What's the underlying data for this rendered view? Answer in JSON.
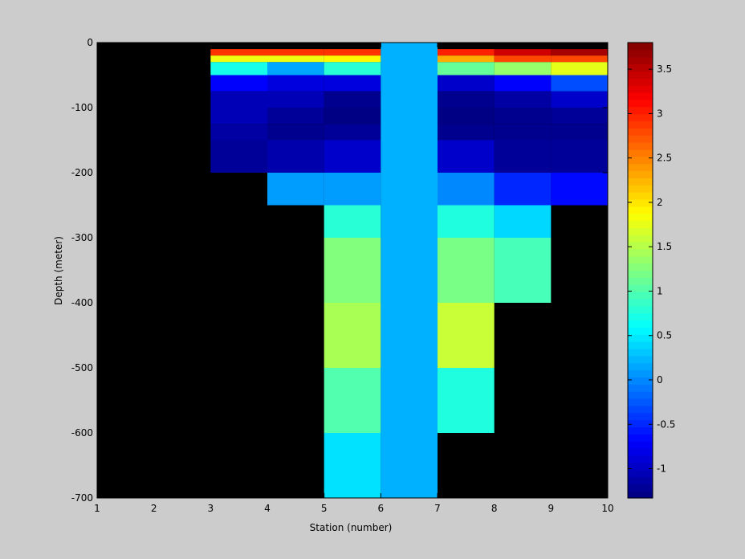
{
  "chart_data": {
    "type": "heatmap",
    "xlabel": "Station (number)",
    "ylabel": "Depth (meter)",
    "xlim": [
      1,
      10
    ],
    "ylim": [
      -700,
      0
    ],
    "x_ticks": [
      1,
      2,
      3,
      4,
      5,
      6,
      7,
      8,
      9,
      10
    ],
    "y_ticks": [
      0,
      -100,
      -200,
      -300,
      -400,
      -500,
      -600,
      -700
    ],
    "background_color": "#000000",
    "colormap": "jet",
    "clim": [
      -1.33,
      3.8
    ],
    "colorbar_ticks": [
      -1,
      -0.5,
      0,
      0.5,
      1,
      1.5,
      2,
      2.5,
      3,
      3.5
    ],
    "cells": [
      {
        "x0": 3,
        "x1": 4,
        "top": -10,
        "bottom": -20,
        "value": 2.9
      },
      {
        "x0": 3,
        "x1": 4,
        "top": -20,
        "bottom": -30,
        "value": 1.8
      },
      {
        "x0": 3,
        "x1": 4,
        "top": -30,
        "bottom": -50,
        "value": 0.7
      },
      {
        "x0": 3,
        "x1": 4,
        "top": -50,
        "bottom": -75,
        "value": -0.7
      },
      {
        "x0": 3,
        "x1": 4,
        "top": -75,
        "bottom": -100,
        "value": -1.05
      },
      {
        "x0": 3,
        "x1": 4,
        "top": -100,
        "bottom": -125,
        "value": -1.05
      },
      {
        "x0": 3,
        "x1": 4,
        "top": -125,
        "bottom": -150,
        "value": -1.15
      },
      {
        "x0": 3,
        "x1": 4,
        "top": -150,
        "bottom": -200,
        "value": -1.2
      },
      {
        "x0": 4,
        "x1": 5,
        "top": -10,
        "bottom": -20,
        "value": 2.9
      },
      {
        "x0": 4,
        "x1": 5,
        "top": -20,
        "bottom": -30,
        "value": 1.8
      },
      {
        "x0": 4,
        "x1": 5,
        "top": -30,
        "bottom": -50,
        "value": 0.15
      },
      {
        "x0": 4,
        "x1": 5,
        "top": -50,
        "bottom": -75,
        "value": -0.85
      },
      {
        "x0": 4,
        "x1": 5,
        "top": -75,
        "bottom": -100,
        "value": -1.05
      },
      {
        "x0": 4,
        "x1": 5,
        "top": -100,
        "bottom": -125,
        "value": -1.2
      },
      {
        "x0": 4,
        "x1": 5,
        "top": -125,
        "bottom": -150,
        "value": -1.25
      },
      {
        "x0": 4,
        "x1": 5,
        "top": -150,
        "bottom": -200,
        "value": -1.1
      },
      {
        "x0": 4,
        "x1": 5,
        "top": -200,
        "bottom": -250,
        "value": 0.1
      },
      {
        "x0": 5,
        "x1": 6,
        "top": -10,
        "bottom": -20,
        "value": 2.9
      },
      {
        "x0": 5,
        "x1": 6,
        "top": -20,
        "bottom": -30,
        "value": 1.9
      },
      {
        "x0": 5,
        "x1": 6,
        "top": -30,
        "bottom": -50,
        "value": 0.8
      },
      {
        "x0": 5,
        "x1": 6,
        "top": -50,
        "bottom": -75,
        "value": -0.85
      },
      {
        "x0": 5,
        "x1": 6,
        "top": -75,
        "bottom": -100,
        "value": -1.25
      },
      {
        "x0": 5,
        "x1": 6,
        "top": -100,
        "bottom": -125,
        "value": -1.3
      },
      {
        "x0": 5,
        "x1": 6,
        "top": -125,
        "bottom": -150,
        "value": -1.2
      },
      {
        "x0": 5,
        "x1": 6,
        "top": -150,
        "bottom": -200,
        "value": -0.95
      },
      {
        "x0": 5,
        "x1": 6,
        "top": -200,
        "bottom": -250,
        "value": 0.1
      },
      {
        "x0": 5,
        "x1": 6,
        "top": -250,
        "bottom": -300,
        "value": 0.8
      },
      {
        "x0": 5,
        "x1": 6,
        "top": -300,
        "bottom": -400,
        "value": 1.25
      },
      {
        "x0": 5,
        "x1": 6,
        "top": -400,
        "bottom": -500,
        "value": 1.45
      },
      {
        "x0": 5,
        "x1": 6,
        "top": -500,
        "bottom": -600,
        "value": 1.0
      },
      {
        "x0": 5,
        "x1": 6,
        "top": -600,
        "bottom": -700,
        "value": 0.45
      },
      {
        "x0": 6,
        "x1": 7,
        "top": 0,
        "bottom": -700,
        "value": 0.2
      },
      {
        "x0": 7,
        "x1": 8,
        "top": -10,
        "bottom": -20,
        "value": 3.0
      },
      {
        "x0": 7,
        "x1": 8,
        "top": -20,
        "bottom": -30,
        "value": 2.3
      },
      {
        "x0": 7,
        "x1": 8,
        "top": -30,
        "bottom": -50,
        "value": 1.1
      },
      {
        "x0": 7,
        "x1": 8,
        "top": -50,
        "bottom": -75,
        "value": -0.95
      },
      {
        "x0": 7,
        "x1": 8,
        "top": -75,
        "bottom": -100,
        "value": -1.25
      },
      {
        "x0": 7,
        "x1": 8,
        "top": -100,
        "bottom": -125,
        "value": -1.3
      },
      {
        "x0": 7,
        "x1": 8,
        "top": -125,
        "bottom": -150,
        "value": -1.25
      },
      {
        "x0": 7,
        "x1": 8,
        "top": -150,
        "bottom": -200,
        "value": -0.95
      },
      {
        "x0": 7,
        "x1": 8,
        "top": -200,
        "bottom": -250,
        "value": 0.0
      },
      {
        "x0": 7,
        "x1": 8,
        "top": -250,
        "bottom": -300,
        "value": 0.75
      },
      {
        "x0": 7,
        "x1": 8,
        "top": -300,
        "bottom": -400,
        "value": 1.2
      },
      {
        "x0": 7,
        "x1": 8,
        "top": -400,
        "bottom": -500,
        "value": 1.6
      },
      {
        "x0": 7,
        "x1": 8,
        "top": -500,
        "bottom": -600,
        "value": 0.75
      },
      {
        "x0": 8,
        "x1": 9,
        "top": -10,
        "bottom": -20,
        "value": 3.4
      },
      {
        "x0": 8,
        "x1": 9,
        "top": -20,
        "bottom": -30,
        "value": 2.8
      },
      {
        "x0": 8,
        "x1": 9,
        "top": -30,
        "bottom": -50,
        "value": 1.35
      },
      {
        "x0": 8,
        "x1": 9,
        "top": -50,
        "bottom": -75,
        "value": -0.7
      },
      {
        "x0": 8,
        "x1": 9,
        "top": -75,
        "bottom": -100,
        "value": -1.15
      },
      {
        "x0": 8,
        "x1": 9,
        "top": -100,
        "bottom": -125,
        "value": -1.25
      },
      {
        "x0": 8,
        "x1": 9,
        "top": -125,
        "bottom": -150,
        "value": -1.25
      },
      {
        "x0": 8,
        "x1": 9,
        "top": -150,
        "bottom": -200,
        "value": -1.2
      },
      {
        "x0": 8,
        "x1": 9,
        "top": -200,
        "bottom": -250,
        "value": -0.5
      },
      {
        "x0": 8,
        "x1": 9,
        "top": -250,
        "bottom": -300,
        "value": 0.4
      },
      {
        "x0": 8,
        "x1": 9,
        "top": -300,
        "bottom": -400,
        "value": 0.95
      },
      {
        "x0": 9,
        "x1": 10,
        "top": -10,
        "bottom": -20,
        "value": 3.6
      },
      {
        "x0": 9,
        "x1": 10,
        "top": -20,
        "bottom": -30,
        "value": 2.8
      },
      {
        "x0": 9,
        "x1": 10,
        "top": -30,
        "bottom": -50,
        "value": 1.75
      },
      {
        "x0": 9,
        "x1": 10,
        "top": -50,
        "bottom": -75,
        "value": -0.3
      },
      {
        "x0": 9,
        "x1": 10,
        "top": -75,
        "bottom": -100,
        "value": -0.95
      },
      {
        "x0": 9,
        "x1": 10,
        "top": -100,
        "bottom": -125,
        "value": -1.2
      },
      {
        "x0": 9,
        "x1": 10,
        "top": -125,
        "bottom": -150,
        "value": -1.25
      },
      {
        "x0": 9,
        "x1": 10,
        "top": -150,
        "bottom": -200,
        "value": -1.2
      },
      {
        "x0": 9,
        "x1": 10,
        "top": -200,
        "bottom": -250,
        "value": -0.65
      }
    ]
  }
}
